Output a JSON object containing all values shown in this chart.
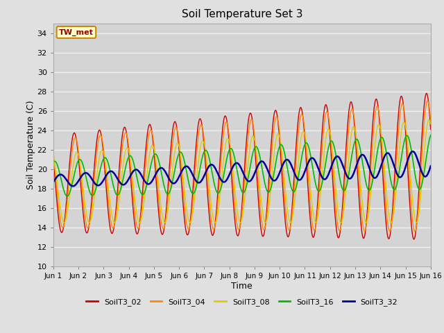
{
  "title": "Soil Temperature Set 3",
  "xlabel": "Time",
  "ylabel": "Soil Temperature (C)",
  "yticks": [
    10,
    12,
    14,
    16,
    18,
    20,
    22,
    24,
    26,
    28,
    30,
    32,
    34
  ],
  "xtick_positions": [
    0,
    1,
    2,
    3,
    4,
    5,
    6,
    7,
    8,
    9,
    10,
    11,
    12,
    13,
    14,
    15
  ],
  "xtick_labels": [
    "Jun 1",
    "Jun 2",
    "Jun 3",
    "Jun 4",
    "Jun 5",
    "Jun 6",
    "Jun 7",
    "Jun 8",
    "Jun 9",
    "Jun 10",
    "Jun 11",
    "Jun 12",
    "Jun 13",
    "Jun 14",
    "Jun 15",
    "Jun 16"
  ],
  "annotation_text": "TW_met",
  "annotation_bg": "#ffffcc",
  "annotation_edge": "#cc8800",
  "annotation_text_color": "#990000",
  "series_colors": [
    "#cc0000",
    "#ff8800",
    "#ddcc00",
    "#00bb00",
    "#000099"
  ],
  "series_labels": [
    "SoilT3_02",
    "SoilT3_04",
    "SoilT3_08",
    "SoilT3_16",
    "SoilT3_32"
  ],
  "series_linewidths": [
    1.0,
    1.0,
    1.0,
    1.2,
    1.8
  ],
  "background_color": "#e0e0e0",
  "plot_bg_color": "#d4d4d4",
  "grid_color": "#f0f0f0",
  "figwidth": 6.4,
  "figheight": 4.8,
  "dpi": 100
}
